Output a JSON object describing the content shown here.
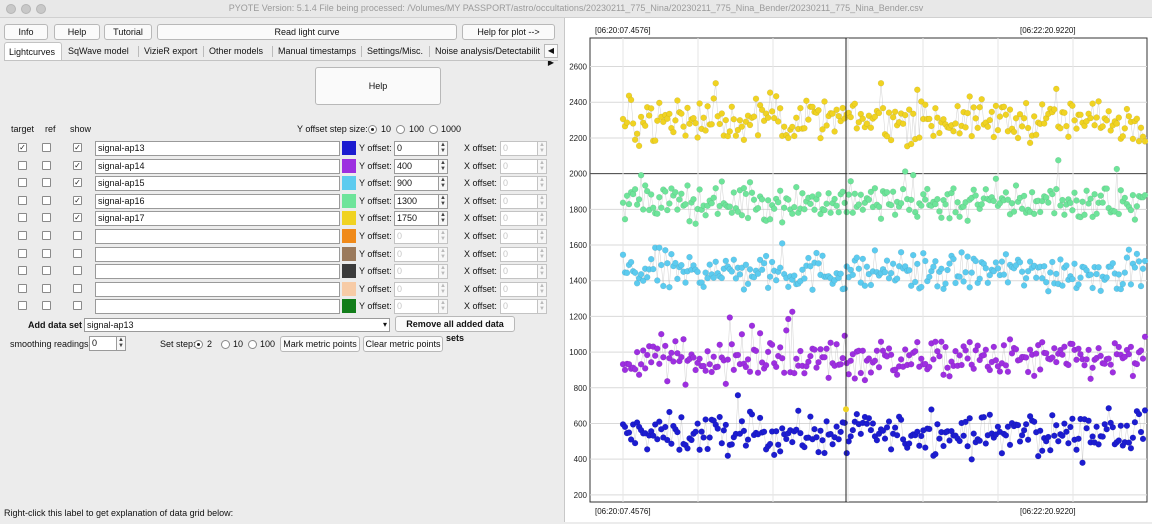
{
  "window": {
    "title": "PYOTE Version: 5.1.4  File being processed: /Volumes/MY PASSPORT/astro/occultations/20230211_775_Nina/20230211_775_Nina_Bender/20230211_775_Nina_Bender.csv"
  },
  "toolbar": {
    "info": "Info",
    "help": "Help",
    "tutorial": "Tutorial",
    "read_light_curve": "Read light curve",
    "help_for_plot": "Help for plot -->"
  },
  "tabs": [
    "Lightcurves",
    "SqWave model",
    "VizieR export",
    "Other models",
    "Manual timestamps",
    "Settings/Misc.",
    "Noise analysis/Detectabilit"
  ],
  "tab_arrow": "◀ ▶",
  "panel": {
    "help_button": "Help",
    "col_target": "target",
    "col_ref": "ref",
    "col_show": "show",
    "y_step_label": "Y offset step size:",
    "y_step_options": [
      "10",
      "100",
      "1000"
    ],
    "y_step_selected": "10",
    "y_offset_label": "Y offset:",
    "x_offset_label": "X offset:",
    "x_offset_value": "0",
    "add_data_set_label": "Add data set",
    "add_data_set_value": "signal-ap13",
    "remove_all_button": "Remove all added data sets",
    "smoothing_label": "smoothing readings",
    "smoothing_value": "0",
    "set_step_label": "Set step:",
    "set_step_options": [
      "2",
      "10",
      "100"
    ],
    "set_step_selected": "2",
    "mark_metric_button": "Mark metric points",
    "clear_metric_button": "Clear metric points",
    "footer_hint": "Right-click this label to get explanation of data grid below:"
  },
  "rows": [
    {
      "target": true,
      "ref": false,
      "show": true,
      "name": "signal-ap13",
      "color": "#1c1cd0",
      "y_offset": "0"
    },
    {
      "target": false,
      "ref": false,
      "show": true,
      "name": "signal-ap14",
      "color": "#9d2fe0",
      "y_offset": "400"
    },
    {
      "target": false,
      "ref": false,
      "show": true,
      "name": "signal-ap15",
      "color": "#5ccbef",
      "y_offset": "900"
    },
    {
      "target": false,
      "ref": false,
      "show": true,
      "name": "signal-ap16",
      "color": "#6ee49a",
      "y_offset": "1300"
    },
    {
      "target": false,
      "ref": false,
      "show": true,
      "name": "signal-ap17",
      "color": "#f0d322",
      "y_offset": "1750"
    },
    {
      "target": false,
      "ref": false,
      "show": false,
      "name": "",
      "color": "#f08a1a",
      "y_offset": "0"
    },
    {
      "target": false,
      "ref": false,
      "show": false,
      "name": "",
      "color": "#9b7a5c",
      "y_offset": "0"
    },
    {
      "target": false,
      "ref": false,
      "show": false,
      "name": "",
      "color": "#3b3b3b",
      "y_offset": "0"
    },
    {
      "target": false,
      "ref": false,
      "show": false,
      "name": "",
      "color": "#f7cba6",
      "y_offset": "0"
    },
    {
      "target": false,
      "ref": false,
      "show": false,
      "name": "",
      "color": "#127d1a",
      "y_offset": "0"
    }
  ],
  "chart_data": {
    "type": "scatter",
    "title": "",
    "time_label_left": "[06:20:07.4576]",
    "time_label_right": "[06:22:20.9220]",
    "ylim": [
      160,
      2760
    ],
    "yticks": [
      200,
      400,
      600,
      800,
      1000,
      1200,
      1400,
      1600,
      1800,
      2000,
      2200,
      2400,
      2600
    ],
    "grid": true,
    "series": [
      {
        "name": "signal-ap13",
        "color": "#1c1cd0",
        "center": 540,
        "spread": 90
      },
      {
        "name": "signal-ap14",
        "color": "#9d2fe0",
        "center": 960,
        "spread": 90
      },
      {
        "name": "signal-ap15",
        "color": "#5ccbef",
        "center": 1450,
        "spread": 90
      },
      {
        "name": "signal-ap16",
        "color": "#6ee49a",
        "center": 1840,
        "spread": 85
      },
      {
        "name": "signal-ap17",
        "color": "#f0d322",
        "center": 2300,
        "spread": 95
      }
    ]
  }
}
